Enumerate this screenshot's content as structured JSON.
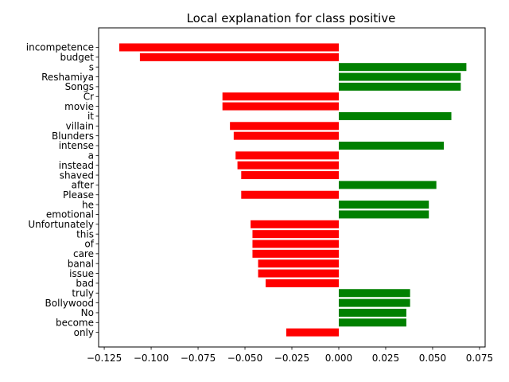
{
  "chart_data": {
    "type": "bar",
    "orientation": "horizontal",
    "title": "Local explanation for class positive",
    "xlabel": "",
    "ylabel": "",
    "xlim": [
      -0.128,
      0.078
    ],
    "xticks": [
      -0.125,
      -0.1,
      -0.075,
      -0.05,
      -0.025,
      0.0,
      0.025,
      0.05,
      0.075
    ],
    "xtick_labels": [
      "−0.125",
      "−0.100",
      "−0.075",
      "−0.050",
      "−0.025",
      "0.000",
      "0.025",
      "0.050",
      "0.075"
    ],
    "grid": false,
    "positive_color": "#008000",
    "negative_color": "#ff0000",
    "categories": [
      "incompetence",
      "budget",
      "s",
      "Reshamiya",
      "Songs",
      "Cr",
      "movie",
      "it",
      "villain",
      "Blunders",
      "intense",
      "a",
      "instead",
      "shaved",
      "after",
      "Please",
      "he",
      "emotional",
      "Unfortunately",
      "this",
      "of",
      "care",
      "banal",
      "issue",
      "bad",
      "truly",
      "Bollywood",
      "No",
      "become",
      "only"
    ],
    "values": [
      -0.117,
      -0.106,
      0.068,
      0.065,
      0.065,
      -0.062,
      -0.062,
      0.06,
      -0.058,
      -0.056,
      0.056,
      -0.055,
      -0.054,
      -0.052,
      0.052,
      -0.052,
      0.048,
      0.048,
      -0.047,
      -0.046,
      -0.046,
      -0.046,
      -0.043,
      -0.043,
      -0.039,
      0.038,
      0.038,
      0.036,
      0.036,
      -0.028
    ]
  }
}
